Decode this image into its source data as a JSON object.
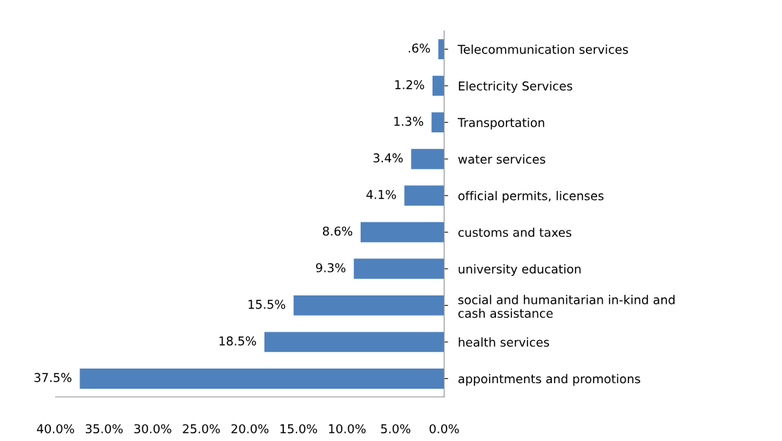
{
  "chart_data": {
    "type": "bar",
    "orientation": "horizontal",
    "categories": [
      "Telecommunication services",
      "Electricity Services",
      "Transportation",
      "water services",
      "official permits, licenses",
      "customs and taxes",
      "university education",
      "social and humanitarian in-kind and\ncash assistance",
      "health services",
      "appointments and promotions"
    ],
    "values": [
      0.6,
      1.2,
      1.3,
      3.4,
      4.1,
      8.6,
      9.3,
      15.5,
      18.5,
      37.5
    ],
    "value_labels": [
      ".6%",
      "1.2%",
      "1.3%",
      "3.4%",
      "4.1%",
      "8.6%",
      "9.3%",
      "15.5%",
      "18.5%",
      "37.5%"
    ],
    "color": "#4f81bd",
    "xlim": [
      40,
      0
    ],
    "xticks": [
      {
        "value": 40,
        "label": "40.0%"
      },
      {
        "value": 35,
        "label": "35.0%"
      },
      {
        "value": 30,
        "label": "30.0%"
      },
      {
        "value": 25,
        "label": "25.0%"
      },
      {
        "value": 20,
        "label": "20.0%"
      },
      {
        "value": 15,
        "label": "15.0%"
      },
      {
        "value": 10,
        "label": "10.0%"
      },
      {
        "value": 5,
        "label": "5.0%"
      },
      {
        "value": 0,
        "label": "0.0%"
      }
    ],
    "grid": false
  }
}
